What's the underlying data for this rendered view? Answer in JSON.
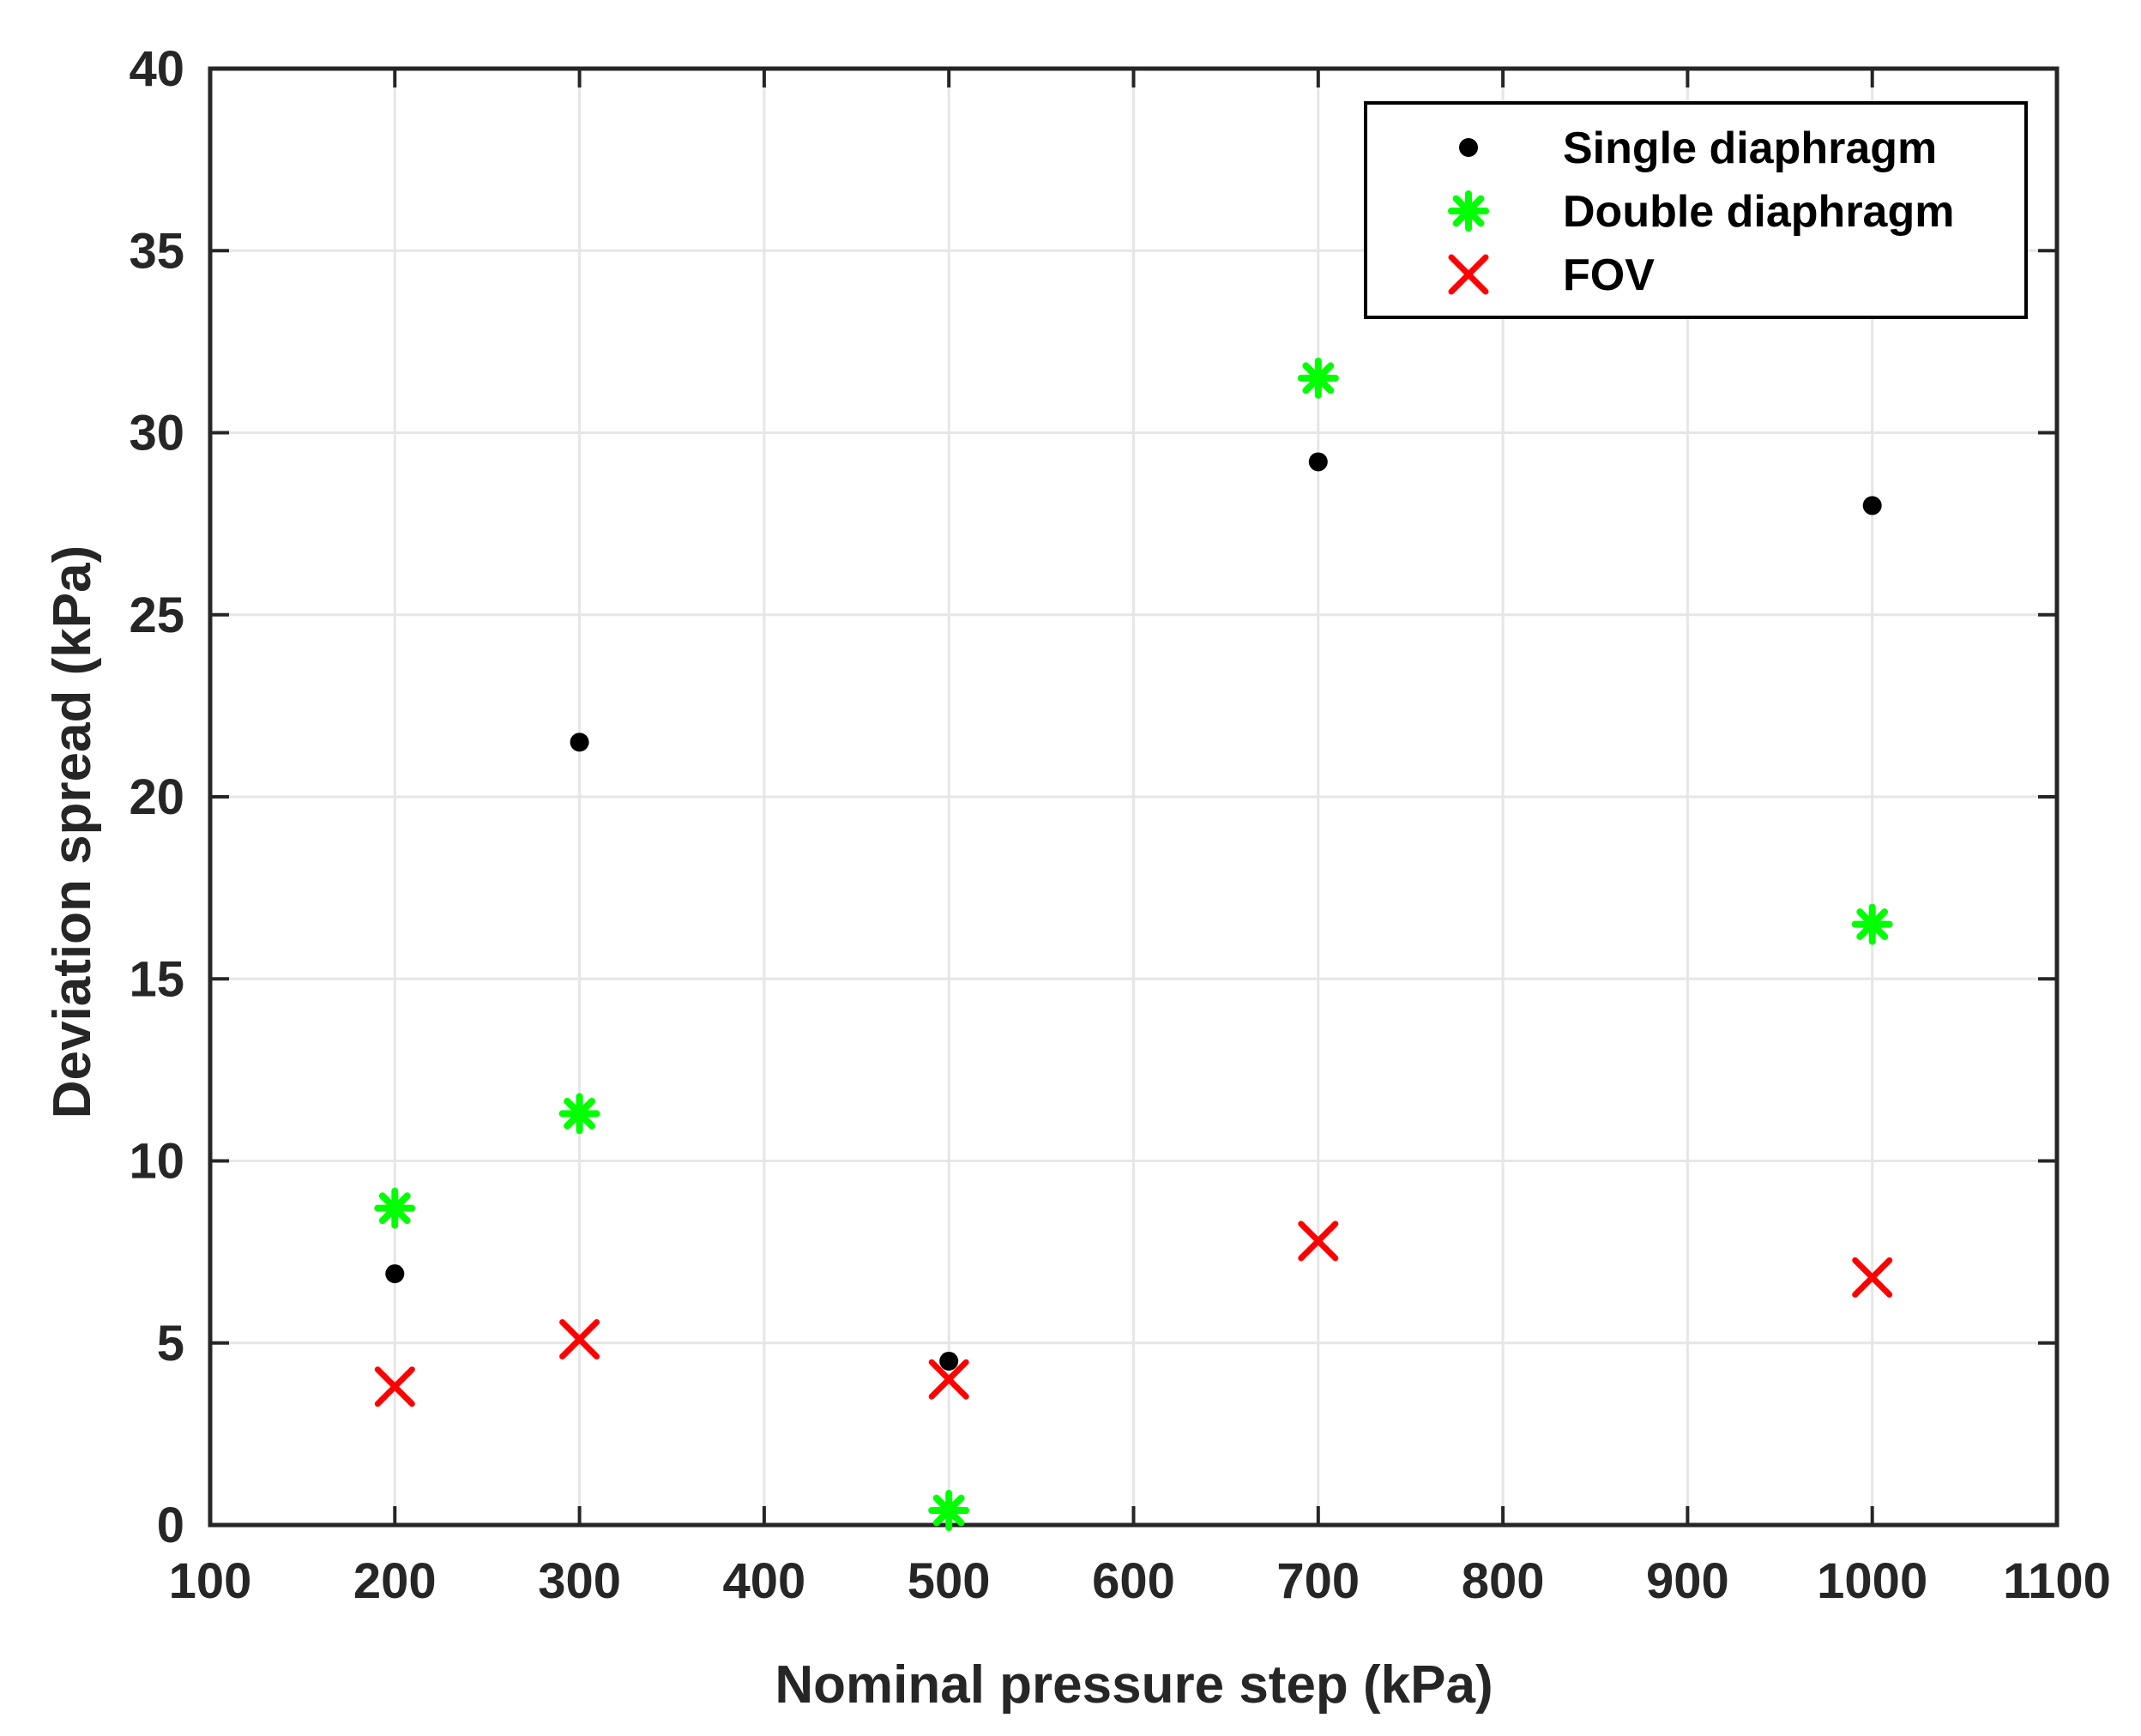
{
  "chart_data": {
    "type": "scatter",
    "title": "",
    "xlabel": "Nominal pressure step (kPa)",
    "ylabel": "Deviation spread (kPa)",
    "xlim": [
      100,
      1100
    ],
    "ylim": [
      0,
      40
    ],
    "xticks": [
      100,
      200,
      300,
      400,
      500,
      600,
      700,
      800,
      900,
      1000,
      1100
    ],
    "yticks": [
      0,
      5,
      10,
      15,
      20,
      25,
      30,
      35,
      40
    ],
    "xtick_labels": [
      "100",
      "200",
      "300",
      "400",
      "500",
      "600",
      "700",
      "800",
      "900",
      "1000",
      "1100"
    ],
    "ytick_labels": [
      "0",
      "5",
      "10",
      "15",
      "20",
      "25",
      "30",
      "35",
      "40"
    ],
    "grid": true,
    "legend_position": "top-right",
    "series": [
      {
        "name": "Single diaphragm",
        "marker": "dot",
        "color": "#000000",
        "x": [
          200,
          300,
          500,
          700,
          1000
        ],
        "y": [
          6.9,
          21.5,
          4.5,
          29.2,
          28.0
        ]
      },
      {
        "name": "Double diaphragm",
        "marker": "asterisk",
        "color": "#00ff00",
        "x": [
          200,
          300,
          500,
          700,
          1000
        ],
        "y": [
          8.7,
          11.3,
          0.4,
          31.5,
          16.5
        ]
      },
      {
        "name": "FOV",
        "marker": "x",
        "color": "#ff0000",
        "x": [
          200,
          300,
          500,
          700,
          1000
        ],
        "y": [
          3.8,
          5.1,
          4.0,
          7.8,
          6.8
        ]
      }
    ]
  }
}
